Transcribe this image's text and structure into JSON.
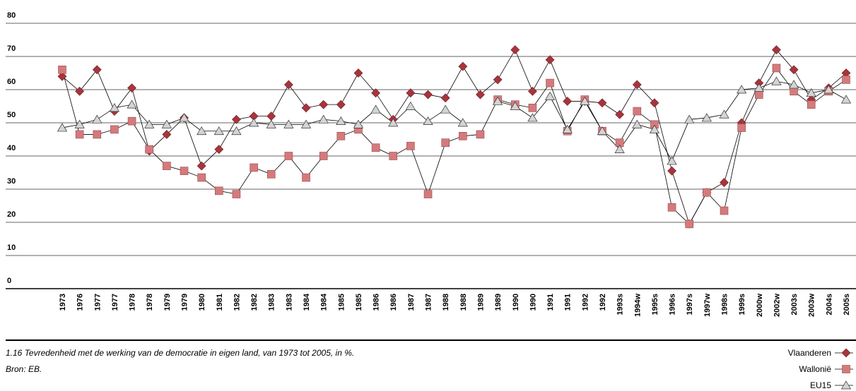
{
  "chart_data": {
    "type": "line",
    "caption": "1.16 Tevredenheid met de werking van de democratie in eigen land, van 1973 tot 2005, in %.",
    "source": "Bron: EB.",
    "categories": [
      "1973",
      "1976",
      "1977",
      "1977",
      "1978",
      "1978",
      "1979",
      "1979",
      "1980",
      "1981",
      "1982",
      "1982",
      "1983",
      "1983",
      "1984",
      "1984",
      "1985",
      "1985",
      "1986",
      "1986",
      "1987",
      "1987",
      "1988",
      "1988",
      "1989",
      "1989",
      "1990",
      "1990",
      "1991",
      "1991",
      "1992",
      "1992",
      "1993s",
      "1994w",
      "1995s",
      "1996s",
      "1997s",
      "1997w",
      "1998s",
      "1999s",
      "2000w",
      "2002w",
      "2003s",
      "2003w",
      "2004s",
      "2005s"
    ],
    "series": [
      {
        "name": "Vlaanderen",
        "color": "#a8343c",
        "marker": "diamond",
        "values": [
          64,
          59.5,
          66,
          53.5,
          60.5,
          41.5,
          46.5,
          51.5,
          37,
          42,
          51,
          52,
          52,
          61.5,
          54.5,
          55.5,
          55.5,
          65,
          59,
          51,
          59,
          58.5,
          57.5,
          67,
          58.5,
          63,
          72,
          59.5,
          69,
          56.5,
          56.5,
          56,
          52.5,
          61.5,
          56,
          35.5,
          19.5,
          29,
          32,
          50,
          62,
          72,
          66,
          57,
          60.5,
          65
        ]
      },
      {
        "name": "Wallonië",
        "color": "#d47a7c",
        "marker": "square",
        "values": [
          66,
          46.5,
          46.5,
          48,
          50.5,
          42,
          37,
          35.5,
          33.5,
          29.5,
          28.5,
          36.5,
          34.5,
          40,
          33.5,
          40,
          46,
          48,
          42.5,
          40,
          43,
          28.5,
          44,
          46,
          46.5,
          57,
          55.5,
          54.5,
          62,
          47.5,
          57,
          47.5,
          44,
          53.5,
          49.5,
          24.5,
          19.5,
          29,
          23.5,
          48.5,
          58.5,
          66.5,
          59.5,
          55.5,
          59.5,
          63
        ]
      },
      {
        "name": "EU15",
        "color": "#d4d4d4",
        "marker": "triangle",
        "values": [
          48.5,
          49.5,
          51,
          54.5,
          55.5,
          49.5,
          49.5,
          51.5,
          47.5,
          47.5,
          47.5,
          50,
          49.5,
          49.5,
          49.5,
          51,
          50.5,
          49.5,
          54,
          50,
          55,
          50.5,
          54,
          50,
          null,
          56.5,
          55,
          51.5,
          58,
          48,
          56.5,
          47.5,
          42,
          49.5,
          48,
          38.5,
          51,
          51.5,
          52.5,
          60,
          60.5,
          62.5,
          61.5,
          59,
          60,
          57
        ]
      }
    ],
    "ylim": [
      0,
      80
    ],
    "yticks": [
      0,
      10,
      20,
      30,
      40,
      50,
      60,
      70,
      80
    ],
    "grid": true
  }
}
